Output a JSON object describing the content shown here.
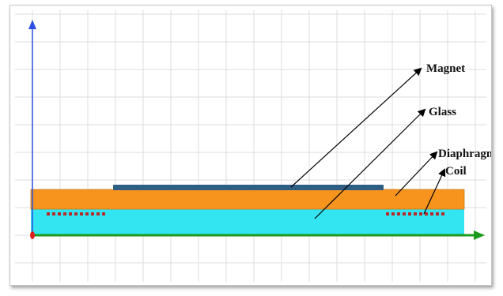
{
  "labels": {
    "magnet": "Magnet",
    "glass": "Glass",
    "diaphragm": "Diaphragm",
    "coil": "Coil"
  },
  "colors": {
    "grid": "#dcdcdc",
    "y_axis": "#2c4fe6",
    "x_axis": "#1c9a1c",
    "origin": "#e02020",
    "magnet": "#2f5e84",
    "diaphragm": "#f7941d",
    "glass": "#33e5f0",
    "coil": "#b82828",
    "pointer": "#000000"
  },
  "icons": {
    "origin": "origin-dot-icon",
    "y_axis_arrow": "arrow-up-icon",
    "x_axis_arrow": "arrow-right-icon"
  }
}
